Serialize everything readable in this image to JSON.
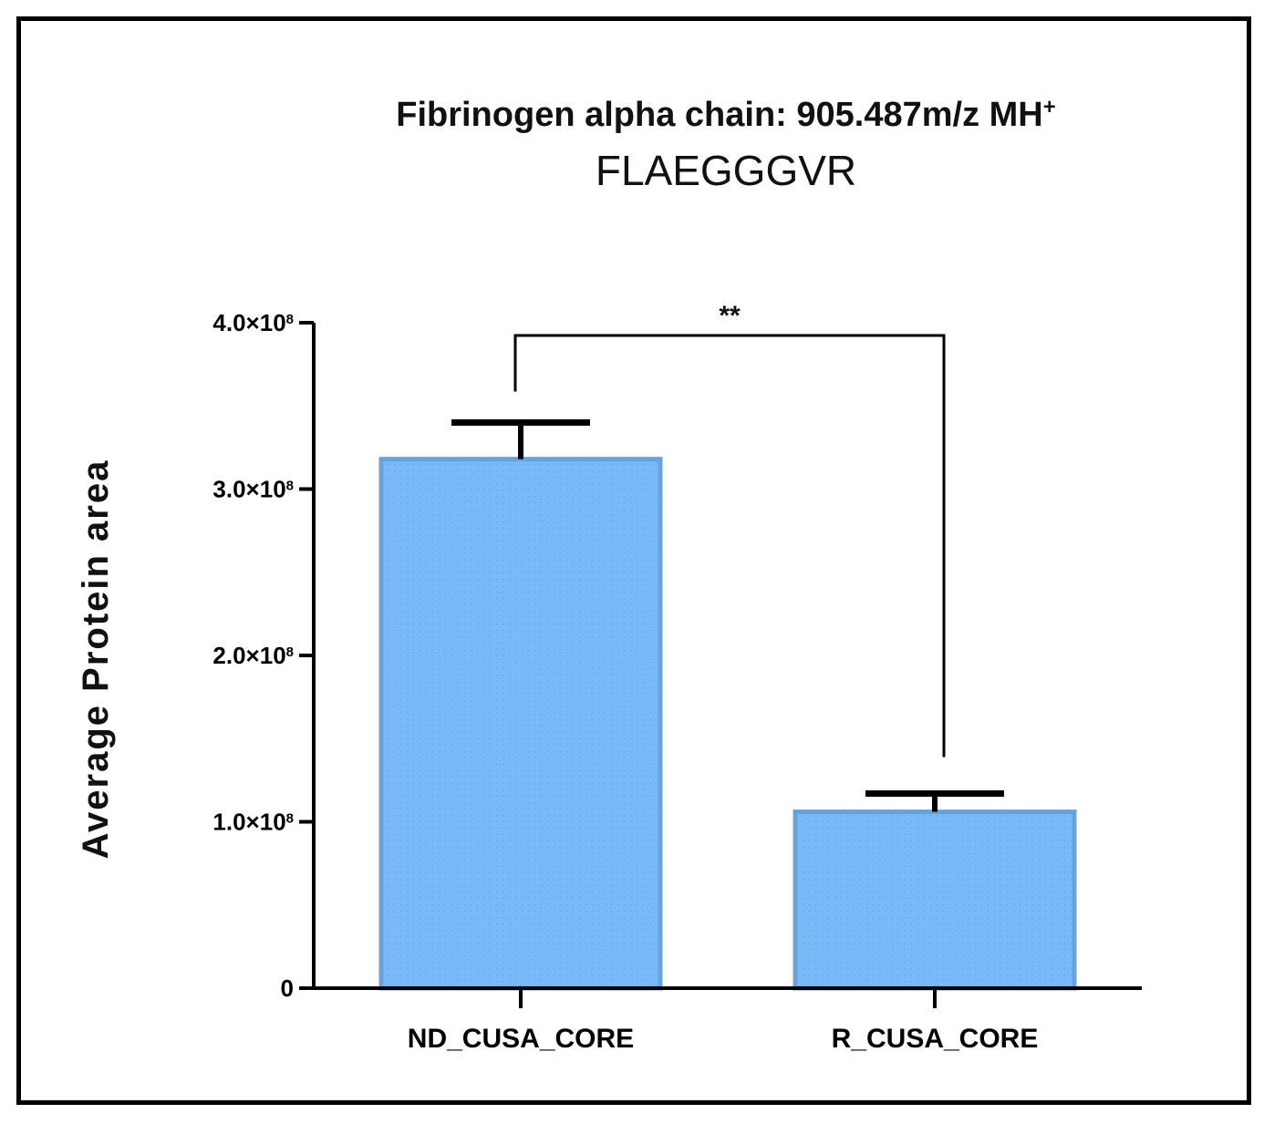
{
  "chart_data": {
    "type": "bar",
    "title": "Fibrinogen alpha chain: 905.487m/z MH",
    "title_superscript": "+",
    "subtitle": "FLAEGGGVR",
    "xlabel": "",
    "ylabel": "Average Protein area",
    "categories": [
      "ND_CUSA_CORE",
      "R_CUSA_CORE"
    ],
    "values": [
      318000000,
      106000000
    ],
    "errors": [
      22000000,
      11000000
    ],
    "ylim": [
      0,
      400000000
    ],
    "yticks": [
      0,
      100000000,
      200000000,
      300000000,
      400000000
    ],
    "ytick_labels": [
      {
        "base": "0",
        "exp": ""
      },
      {
        "base": "1.0×10",
        "exp": "8"
      },
      {
        "base": "2.0×10",
        "exp": "8"
      },
      {
        "base": "3.0×10",
        "exp": "8"
      },
      {
        "base": "4.0×10",
        "exp": "8"
      }
    ],
    "significance": {
      "from": 0,
      "to": 1,
      "label": "**"
    },
    "bar_color": "#78baf7",
    "bar_edge_color": "#6aa2d8",
    "grid": false,
    "legend": "none"
  }
}
